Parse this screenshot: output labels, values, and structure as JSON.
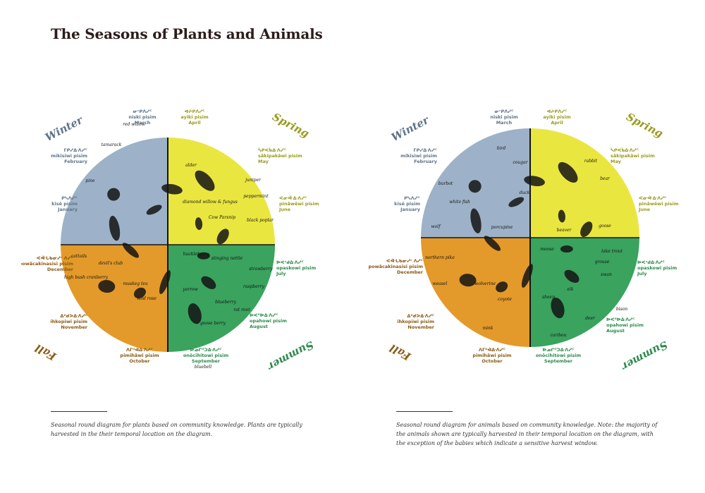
{
  "title": "The Seasons of Plants and Animals",
  "colors": {
    "winter": "#9db2c8",
    "spring": "#eae640",
    "summer": "#3aa35e",
    "fall": "#e39a2a",
    "winter_text": "#5e7489",
    "spring_text": "#9a9a1f",
    "summer_text": "#2c8a4d",
    "fall_text": "#8a5a14"
  },
  "seasons": {
    "winter": "Winter",
    "spring": "Spring",
    "summer": "Summer",
    "fall": "Fall"
  },
  "months": {
    "march": {
      "syll": "ᓂᐢᑭᐱᓯᒼ",
      "cree": "niski pisim",
      "eng": "March"
    },
    "april": {
      "syll": "ᐊᔨᑭᐱᓯᒼ",
      "cree": "ayiki pisim",
      "eng": "April"
    },
    "may": {
      "syll": "ᓵᑭᐸᑳᐏᐱᓯᒼ",
      "cree": "sâkipakâwi pisim",
      "eng": "May"
    },
    "june": {
      "syll": "ᐸᓂᐚᐏᐱᓯᒼ",
      "cree": "pinâwêwi pisim",
      "eng": "June"
    },
    "july": {
      "syll": "ᐅᐸᐢᑯᐏᐱᓯᒼ",
      "cree": "opaskowi pisim",
      "eng": "July"
    },
    "august": {
      "syll": "ᐅᐸᐦᐅᐏᐱᓯᒼ",
      "cree": "opahowi pisim",
      "eng": "August"
    },
    "september": {
      "syll": "ᐅᓄᒋᐦᑐᐏᐱᓯᒼ",
      "cree": "onôcihitowi pisim",
      "eng": "September"
    },
    "october": {
      "syll": "ᐱᒥᐦᐋᐏᐱᓯᒼ",
      "cree": "pimihâwi pisim",
      "eng": "October"
    },
    "november": {
      "syll": "ᐃᐦᑯᐳᐏᐱᓯᒼ",
      "cree": "ihkopiwi pisim",
      "eng": "November"
    },
    "december": {
      "syll": "ᐸᐚᒐᑲᓂᓯᐢ ᐱᓯᒼ",
      "cree": "powâcakinasisi pisim",
      "eng": "December"
    },
    "january": {
      "syll": "ᑭᓭᐱᓯᒼ",
      "cree": "kisê pisim",
      "eng": "January"
    },
    "february": {
      "syll": "ᒥᑭᓯᐏᐱᓯᒼ",
      "cree": "mikisiwi pisim",
      "eng": "February"
    }
  },
  "plants": [
    "tamarack",
    "red willow",
    "pine",
    "alder",
    "juniper",
    "peppermint",
    "diamond willow & fungus",
    "Cow Parsnip",
    "black poplar",
    "cattails",
    "devil's club",
    "high bush cranberry",
    "muskeg tea",
    "wild rose",
    "huckleberry",
    "stinging nettle",
    "strawberry",
    "yarrow",
    "raspberry",
    "blueberry",
    "rat root",
    "goose berry",
    "bluebell"
  ],
  "animals": [
    "bird",
    "cougar",
    "rabbit",
    "burbot",
    "duck",
    "bear",
    "white fish",
    "wolf",
    "porcupine",
    "beaver",
    "goose",
    "northern pike",
    "moose",
    "lake trout",
    "grouse",
    "swan",
    "weasel",
    "wolverine",
    "elk",
    "coyote",
    "sheep",
    "bison",
    "mink",
    "deer",
    "caribou"
  ],
  "captions": {
    "plants": "Seasonal round diagram for plants based on community knowledge. Plants are typically harvested in the their temporal location on the diagram.",
    "animals": "Seasonal round diagram for animals based on community knowledge. Note: the majority of the animals shown are typically harvested in their temporal location on the diagram, with the exception of the babies which indicate a sensitive harvest window."
  }
}
